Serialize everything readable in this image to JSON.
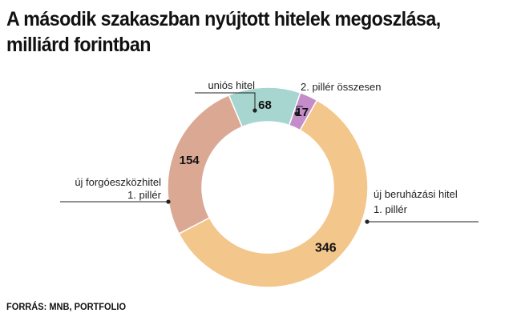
{
  "title_line1": "A második szakaszban nyújtott hitelek megoszlása,",
  "title_line2": "milliárd forintban",
  "source": "FORRÁS: MNB, PORTFOLIO",
  "colors": {
    "new_investment": "#f3c68b",
    "new_working_capital": "#dba894",
    "eu_loan": "#a7d5cf",
    "pillar2_total": "#c48cc8",
    "leader_line": "#222222"
  },
  "chart_data": {
    "type": "pie",
    "donut": true,
    "title": "A második szakaszban nyújtott hitelek megoszlása, milliárd forintban",
    "slices": [
      {
        "label_line1": "2. pillér összesen",
        "label_line2": "",
        "value": 17,
        "color": "#c48cc8"
      },
      {
        "label_line1": "új beruházási hitel",
        "label_line2": "1. pillér",
        "value": 346,
        "color": "#f3c68b"
      },
      {
        "label_line1": "új forgóeszközhitel",
        "label_line2": "1. pillér",
        "value": 154,
        "color": "#dba894"
      },
      {
        "label_line1": "uniós hitel",
        "label_line2": "",
        "value": 68,
        "color": "#a7d5cf"
      }
    ]
  }
}
